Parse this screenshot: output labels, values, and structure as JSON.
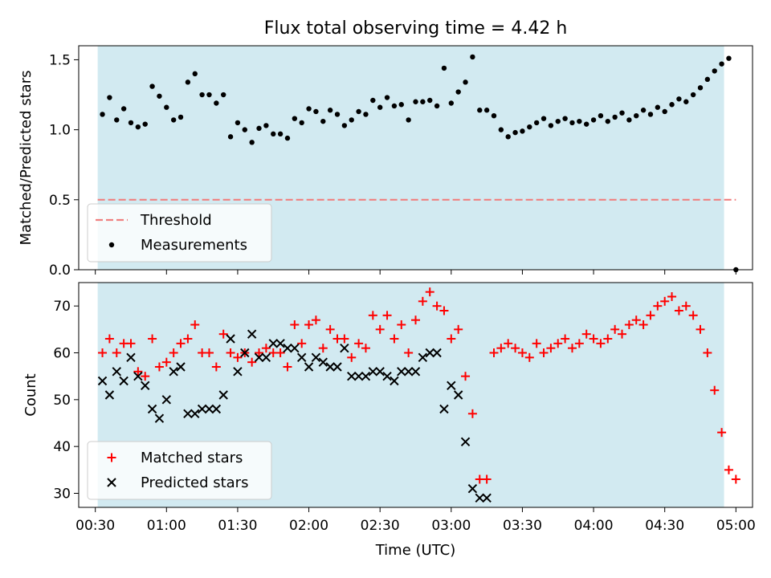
{
  "chart_data": [
    {
      "type": "scatter",
      "title": "Flux total observing time = 4.42 h",
      "ylabel": "Matched/Predicted stars",
      "xlabel": "",
      "xlim": [
        "00:23",
        "05:07"
      ],
      "ylim": [
        0,
        1.6
      ],
      "yticks": [
        "0.0",
        "0.5",
        "1.0",
        "1.5"
      ],
      "grid": false,
      "legend_position": "lower-left",
      "shaded_region": {
        "start": "00:31",
        "end": "04:55",
        "color": "#add8e6"
      },
      "threshold": {
        "name": "Threshold",
        "value": 0.5,
        "x_start": "00:31",
        "x_end": "05:00",
        "color": "#f08080",
        "style": "dashed"
      },
      "series": [
        {
          "name": "Measurements",
          "marker": "dot",
          "color": "#000000",
          "x": [
            "00:33",
            "00:36",
            "00:39",
            "00:42",
            "00:45",
            "00:48",
            "00:51",
            "00:54",
            "00:57",
            "01:00",
            "01:03",
            "01:06",
            "01:09",
            "01:12",
            "01:15",
            "01:18",
            "01:21",
            "01:24",
            "01:27",
            "01:30",
            "01:33",
            "01:36",
            "01:39",
            "01:42",
            "01:45",
            "01:48",
            "01:51",
            "01:54",
            "01:57",
            "02:00",
            "02:03",
            "02:06",
            "02:09",
            "02:12",
            "02:15",
            "02:18",
            "02:21",
            "02:24",
            "02:27",
            "02:30",
            "02:33",
            "02:36",
            "02:39",
            "02:42",
            "02:45",
            "02:48",
            "02:51",
            "02:54",
            "02:57",
            "03:00",
            "03:03",
            "03:06",
            "03:09",
            "03:12",
            "03:15",
            "03:18",
            "03:21",
            "03:24",
            "03:27",
            "03:30",
            "03:33",
            "03:36",
            "03:39",
            "03:42",
            "03:45",
            "03:48",
            "03:51",
            "03:54",
            "03:57",
            "04:00",
            "04:03",
            "04:06",
            "04:09",
            "04:12",
            "04:15",
            "04:18",
            "04:21",
            "04:24",
            "04:27",
            "04:30",
            "04:33",
            "04:36",
            "04:39",
            "04:42",
            "04:45",
            "04:48",
            "04:51",
            "04:54",
            "04:57",
            "05:00"
          ],
          "y": [
            1.11,
            1.23,
            1.07,
            1.15,
            1.05,
            1.02,
            1.04,
            1.31,
            1.24,
            1.16,
            1.07,
            1.09,
            1.34,
            1.4,
            1.25,
            1.25,
            1.19,
            1.25,
            0.95,
            1.05,
            1.0,
            0.91,
            1.01,
            1.03,
            0.97,
            0.97,
            0.94,
            1.08,
            1.05,
            1.15,
            1.13,
            1.06,
            1.14,
            1.11,
            1.03,
            1.07,
            1.13,
            1.11,
            1.21,
            1.16,
            1.23,
            1.17,
            1.18,
            1.07,
            1.2,
            1.2,
            1.21,
            1.17,
            1.44,
            1.19,
            1.27,
            1.34,
            1.52,
            1.14,
            1.14,
            1.1,
            1.0,
            0.95,
            0.98,
            0.99,
            1.02,
            1.05,
            1.08,
            1.03,
            1.06,
            1.08,
            1.05,
            1.06,
            1.04,
            1.07,
            1.1,
            1.06,
            1.09,
            1.12,
            1.07,
            1.1,
            1.14,
            1.11,
            1.16,
            1.13,
            1.18,
            1.22,
            1.2,
            1.25,
            1.3,
            1.36,
            1.42,
            1.47,
            1.51,
            0.0
          ]
        }
      ]
    },
    {
      "type": "scatter",
      "title": "",
      "ylabel": "Count",
      "xlabel": "Time (UTC)",
      "xlim": [
        "00:23",
        "05:07"
      ],
      "ylim": [
        27,
        75
      ],
      "yticks": [
        "30",
        "40",
        "50",
        "60",
        "70"
      ],
      "xticks": [
        "00:30",
        "01:00",
        "01:30",
        "02:00",
        "02:30",
        "03:00",
        "03:30",
        "04:00",
        "04:30",
        "05:00"
      ],
      "grid": false,
      "legend_position": "lower-left",
      "shaded_region": {
        "start": "00:31",
        "end": "04:55",
        "color": "#add8e6"
      },
      "series": [
        {
          "name": "Matched stars",
          "marker": "plus",
          "color": "#ff0000",
          "x": [
            "00:33",
            "00:36",
            "00:39",
            "00:42",
            "00:45",
            "00:48",
            "00:51",
            "00:54",
            "00:57",
            "01:00",
            "01:03",
            "01:06",
            "01:09",
            "01:12",
            "01:15",
            "01:18",
            "01:21",
            "01:24",
            "01:27",
            "01:30",
            "01:33",
            "01:36",
            "01:39",
            "01:42",
            "01:45",
            "01:48",
            "01:51",
            "01:54",
            "01:57",
            "02:00",
            "02:03",
            "02:06",
            "02:09",
            "02:12",
            "02:15",
            "02:18",
            "02:21",
            "02:24",
            "02:27",
            "02:30",
            "02:33",
            "02:36",
            "02:39",
            "02:42",
            "02:45",
            "02:48",
            "02:51",
            "02:54",
            "02:57",
            "03:00",
            "03:03",
            "03:06",
            "03:09",
            "03:12",
            "03:15",
            "03:18",
            "03:21",
            "03:24",
            "03:27",
            "03:30",
            "03:33",
            "03:36",
            "03:39",
            "03:42",
            "03:45",
            "03:48",
            "03:51",
            "03:54",
            "03:57",
            "04:00",
            "04:03",
            "04:06",
            "04:09",
            "04:12",
            "04:15",
            "04:18",
            "04:21",
            "04:24",
            "04:27",
            "04:30",
            "04:33",
            "04:36",
            "04:39",
            "04:42",
            "04:45",
            "04:48",
            "04:51",
            "04:54",
            "04:57",
            "05:00"
          ],
          "y": [
            60,
            63,
            60,
            62,
            62,
            56,
            55,
            63,
            57,
            58,
            60,
            62,
            63,
            66,
            60,
            60,
            57,
            64,
            60,
            59,
            60,
            58,
            60,
            61,
            60,
            60,
            57,
            66,
            62,
            66,
            67,
            61,
            65,
            63,
            63,
            59,
            62,
            61,
            68,
            65,
            68,
            63,
            66,
            60,
            67,
            71,
            73,
            70,
            69,
            63,
            65,
            55,
            47,
            33,
            33,
            60,
            61,
            62,
            61,
            60,
            59,
            62,
            60,
            61,
            62,
            63,
            61,
            62,
            64,
            63,
            62,
            63,
            65,
            64,
            66,
            67,
            66,
            68,
            70,
            71,
            72,
            69,
            70,
            68,
            65,
            60,
            52,
            43,
            35,
            33
          ]
        },
        {
          "name": "Predicted stars",
          "marker": "x",
          "color": "#000000",
          "x": [
            "00:33",
            "00:36",
            "00:39",
            "00:42",
            "00:45",
            "00:48",
            "00:51",
            "00:54",
            "00:57",
            "01:00",
            "01:03",
            "01:06",
            "01:09",
            "01:12",
            "01:15",
            "01:18",
            "01:21",
            "01:24",
            "01:27",
            "01:30",
            "01:33",
            "01:36",
            "01:39",
            "01:42",
            "01:45",
            "01:48",
            "01:51",
            "01:54",
            "01:57",
            "02:00",
            "02:03",
            "02:06",
            "02:09",
            "02:12",
            "02:15",
            "02:18",
            "02:21",
            "02:24",
            "02:27",
            "02:30",
            "02:33",
            "02:36",
            "02:39",
            "02:42",
            "02:45",
            "02:48",
            "02:51",
            "02:54",
            "02:57",
            "03:00",
            "03:03",
            "03:06",
            "03:09",
            "03:12",
            "03:15"
          ],
          "y": [
            54,
            51,
            56,
            54,
            59,
            55,
            53,
            48,
            46,
            50,
            56,
            57,
            47,
            47,
            48,
            48,
            48,
            51,
            63,
            56,
            60,
            64,
            59,
            59,
            62,
            62,
            61,
            61,
            59,
            57,
            59,
            58,
            57,
            57,
            61,
            55,
            55,
            55,
            56,
            56,
            55,
            54,
            56,
            56,
            56,
            59,
            60,
            60,
            48,
            53,
            51,
            41,
            31,
            29,
            29
          ]
        }
      ]
    }
  ]
}
